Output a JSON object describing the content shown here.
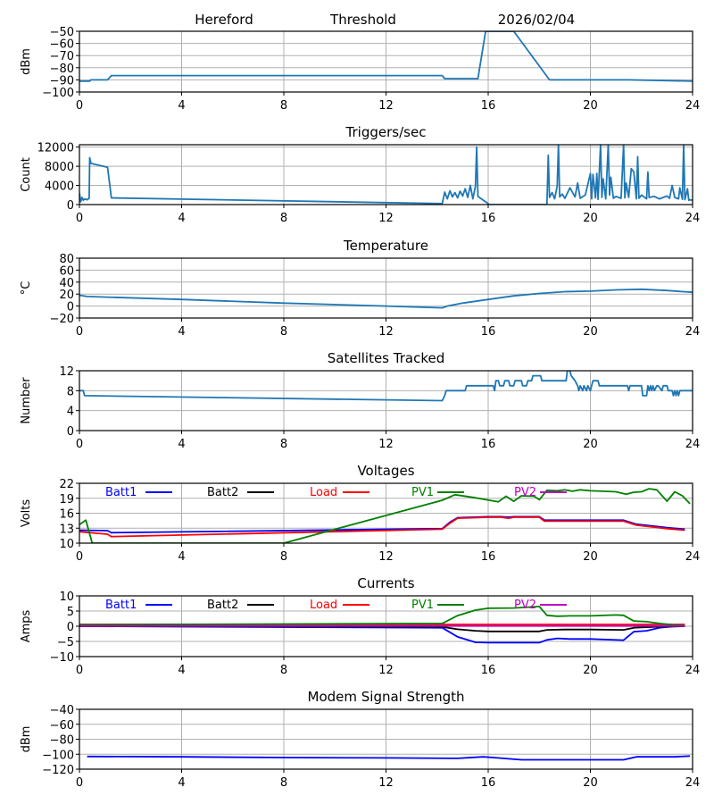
{
  "header": {
    "station": "Hereford",
    "mode": "Threshold",
    "date": "2026/02/04"
  },
  "chart_data": [
    {
      "id": "threshold",
      "type": "line",
      "title": "",
      "xlabel": "",
      "ylabel": "dBm",
      "xlim": [
        0,
        24
      ],
      "ylim": [
        -100,
        -50
      ],
      "xticks": [
        0,
        4,
        8,
        12,
        16,
        20,
        24
      ],
      "yticks": [
        -100,
        -90,
        -80,
        -70,
        -60,
        -50
      ],
      "ytick_labels": [
        "−100",
        "−90",
        "−80",
        "−70",
        "−60",
        "−50"
      ],
      "grid": true,
      "series": [
        {
          "name": "Threshold",
          "color": "#1f77b4",
          "x": [
            0,
            0.4,
            0.45,
            1.1,
            1.25,
            14.2,
            14.3,
            15.6,
            15.9,
            17.0,
            18.4,
            21.5,
            24
          ],
          "y": [
            -91,
            -91,
            -90,
            -90,
            -86.5,
            -86.5,
            -89,
            -89,
            -50,
            -50,
            -90,
            -90,
            -91
          ]
        }
      ]
    },
    {
      "id": "triggers",
      "type": "line",
      "title": "Triggers/sec",
      "xlabel": "",
      "ylabel": "Count",
      "xlim": [
        0,
        24
      ],
      "ylim": [
        0,
        12500
      ],
      "xticks": [
        0,
        4,
        8,
        12,
        16,
        20,
        24
      ],
      "yticks": [
        0,
        4000,
        8000,
        12000
      ],
      "ytick_labels": [
        "0",
        "4000",
        "8000",
        "12000"
      ],
      "grid": true,
      "series": [
        {
          "name": "Triggers",
          "color": "#1f77b4",
          "x": [
            0,
            0.05,
            0.1,
            0.15,
            0.2,
            0.3,
            0.38,
            0.4,
            0.45,
            1.1,
            1.25,
            14.2,
            14.3,
            14.4,
            14.5,
            14.6,
            14.7,
            14.8,
            14.9,
            15.0,
            15.1,
            15.2,
            15.3,
            15.4,
            15.5,
            15.55,
            15.6,
            16.05,
            18.3,
            18.35,
            18.4,
            18.5,
            18.6,
            18.7,
            18.75,
            18.8,
            18.9,
            19.0,
            19.2,
            19.4,
            19.5,
            19.6,
            19.8,
            20.0,
            20.05,
            20.1,
            20.2,
            20.25,
            20.3,
            20.4,
            20.45,
            20.5,
            20.6,
            20.7,
            20.75,
            20.8,
            20.9,
            21.0,
            21.2,
            21.3,
            21.35,
            21.4,
            21.5,
            21.6,
            21.7,
            21.8,
            21.85,
            21.9,
            22.0,
            22.2,
            22.25,
            22.3,
            22.5,
            22.7,
            23.0,
            23.1,
            23.2,
            23.3,
            23.45,
            23.5,
            23.6,
            23.65,
            23.7,
            23.8,
            23.85,
            23.9,
            24
          ],
          "y": [
            2400,
            600,
            1500,
            900,
            1200,
            1000,
            1300,
            9800,
            8600,
            7800,
            1400,
            200,
            2600,
            1200,
            2900,
            1600,
            2500,
            1400,
            2800,
            1800,
            3300,
            1500,
            4000,
            1200,
            3800,
            12000,
            1700,
            0,
            0,
            10300,
            1500,
            2500,
            1200,
            3800,
            12500,
            1600,
            2200,
            1300,
            3500,
            1600,
            4500,
            1300,
            2000,
            6500,
            1200,
            6300,
            1400,
            6500,
            1100,
            12500,
            1500,
            5400,
            1200,
            12500,
            2000,
            5700,
            1300,
            1700,
            1300,
            12500,
            1400,
            4500,
            1500,
            7500,
            6800,
            1200,
            10000,
            1300,
            2000,
            1200,
            6800,
            1500,
            1700,
            1200,
            1800,
            1300,
            4000,
            1500,
            1200,
            3500,
            1100,
            12500,
            1000,
            3300,
            900,
            1000,
            900
          ]
        }
      ]
    },
    {
      "id": "temperature",
      "type": "line",
      "title": "Temperature",
      "xlabel": "",
      "ylabel": "°C",
      "xlim": [
        0,
        24
      ],
      "ylim": [
        -20,
        80
      ],
      "xticks": [
        0,
        4,
        8,
        12,
        16,
        20,
        24
      ],
      "yticks": [
        -20,
        0,
        20,
        40,
        60,
        80
      ],
      "ytick_labels": [
        "−20",
        "0",
        "20",
        "40",
        "60",
        "80"
      ],
      "grid": true,
      "series": [
        {
          "name": "Temperature",
          "color": "#1f77b4",
          "x": [
            0,
            0.3,
            4,
            8,
            12,
            14.2,
            14.4,
            15,
            16,
            17,
            18,
            19,
            20,
            21,
            22,
            23,
            24
          ],
          "y": [
            18,
            16,
            11,
            5,
            0,
            -3,
            0,
            5,
            11,
            17,
            21,
            24,
            25,
            27,
            28,
            26,
            23
          ]
        }
      ]
    },
    {
      "id": "satellites",
      "type": "line",
      "title": "Satellites Tracked",
      "xlabel": "",
      "ylabel": "Number",
      "xlim": [
        0,
        24
      ],
      "ylim": [
        0,
        12
      ],
      "xticks": [
        0,
        4,
        8,
        12,
        16,
        20,
        24
      ],
      "yticks": [
        0,
        4,
        8,
        12
      ],
      "ytick_labels": [
        "0",
        "4",
        "8",
        "12"
      ],
      "grid": true,
      "series": [
        {
          "name": "Satellites",
          "color": "#1f77b4",
          "x": [
            0,
            0.15,
            0.2,
            14.2,
            14.3,
            14.35,
            15.1,
            15.15,
            16.2,
            16.25,
            16.3,
            16.4,
            16.45,
            16.6,
            16.65,
            16.8,
            16.85,
            17.0,
            17.05,
            17.3,
            17.35,
            17.5,
            17.55,
            17.7,
            17.75,
            18.05,
            18.1,
            19.05,
            19.1,
            19.2,
            19.25,
            19.4,
            19.5,
            19.55,
            19.6,
            19.7,
            19.75,
            19.85,
            19.9,
            20.0,
            20.05,
            20.1,
            20.15,
            20.3,
            20.35,
            20.5,
            20.55,
            20.9,
            21.45,
            21.5,
            21.55,
            22.0,
            22.05,
            22.2,
            22.25,
            22.3,
            22.35,
            22.4,
            22.45,
            22.5,
            22.6,
            22.65,
            22.8,
            22.85,
            23.0,
            23.05,
            23.2,
            23.25,
            23.3,
            23.35,
            23.4,
            23.45,
            23.5,
            24
          ],
          "y": [
            8,
            8,
            7,
            6,
            7,
            8,
            8,
            9,
            9,
            8,
            10,
            10,
            9,
            9,
            10,
            10,
            9,
            9,
            10,
            10,
            9,
            9,
            10,
            10,
            11,
            11,
            10,
            10,
            12,
            12,
            11,
            10,
            9,
            8,
            9,
            8,
            9,
            8,
            9,
            8,
            9,
            10,
            10,
            10,
            9,
            9,
            9,
            9,
            9,
            8,
            9,
            9,
            7,
            7,
            9,
            8,
            9,
            8,
            9,
            8,
            9,
            9,
            8,
            9,
            9,
            8,
            8,
            7,
            8,
            7,
            8,
            7,
            8,
            8
          ]
        }
      ]
    },
    {
      "id": "voltages",
      "type": "line",
      "title": "Voltages",
      "xlabel": "",
      "ylabel": "Volts",
      "xlim": [
        0,
        24
      ],
      "ylim": [
        10,
        22
      ],
      "xticks": [
        0,
        4,
        8,
        12,
        16,
        20,
        24
      ],
      "yticks": [
        10,
        13,
        16,
        19,
        22
      ],
      "ytick_labels": [
        "10",
        "13",
        "16",
        "19",
        "22"
      ],
      "grid": true,
      "legend": "top",
      "series": [
        {
          "name": "Batt1",
          "color": "#0000ff",
          "x": [
            0,
            1.1,
            1.25,
            14.2,
            14.5,
            14.8,
            16,
            16.5,
            16.8,
            17,
            18,
            18.2,
            21.3,
            21.8,
            22.5,
            23,
            23.7
          ],
          "y": [
            12.6,
            12.5,
            12.1,
            12.9,
            14.2,
            15.1,
            15.3,
            15.3,
            15.2,
            15.3,
            15.3,
            14.6,
            14.6,
            13.8,
            13.4,
            13.1,
            12.8
          ]
        },
        {
          "name": "Batt2",
          "color": "#000000",
          "x": [],
          "y": []
        },
        {
          "name": "Load",
          "color": "#ff0000",
          "x": [
            0,
            1.1,
            1.25,
            14.2,
            14.5,
            14.8,
            16,
            16.5,
            16.8,
            17,
            18,
            18.2,
            21.3,
            21.8,
            22.5,
            23,
            23.7
          ],
          "y": [
            12.3,
            11.8,
            11.3,
            12.8,
            14.0,
            15.0,
            15.2,
            15.2,
            15.0,
            15.2,
            15.2,
            14.4,
            14.4,
            13.6,
            13.2,
            12.9,
            12.6
          ]
        },
        {
          "name": "PV1",
          "color": "#008000",
          "x": [
            0,
            0.25,
            0.5,
            8,
            14.2,
            14.7,
            15.5,
            16.4,
            16.7,
            17.0,
            17.3,
            17.8,
            18.0,
            18.3,
            18.7,
            19.0,
            19.3,
            19.6,
            20.0,
            20.5,
            21.0,
            21.4,
            21.7,
            22.0,
            22.3,
            22.6,
            23.0,
            23.3,
            23.6,
            23.9
          ],
          "y": [
            13.7,
            14.6,
            10,
            10,
            18.6,
            19.7,
            19.1,
            18.3,
            19.4,
            18.4,
            19.5,
            19.4,
            18.7,
            20.6,
            20.5,
            20.7,
            20.4,
            20.7,
            20.5,
            20.4,
            20.3,
            19.8,
            20.2,
            20.3,
            20.9,
            20.7,
            18.4,
            20.3,
            19.5,
            17.9
          ]
        },
        {
          "name": "PV2",
          "color": "#bf00bf",
          "x": [],
          "y": []
        }
      ]
    },
    {
      "id": "currents",
      "type": "line",
      "title": "Currents",
      "xlabel": "",
      "ylabel": "Amps",
      "xlim": [
        0,
        24
      ],
      "ylim": [
        -10,
        10
      ],
      "xticks": [
        0,
        4,
        8,
        12,
        16,
        20,
        24
      ],
      "yticks": [
        -10,
        -5,
        0,
        5,
        10
      ],
      "ytick_labels": [
        "−10",
        "−5",
        "0",
        "5",
        "10"
      ],
      "grid": true,
      "legend": "top",
      "series": [
        {
          "name": "Batt1",
          "color": "#0000ff",
          "x": [
            0,
            14.2,
            14.8,
            15.5,
            16,
            18,
            18.3,
            18.7,
            19.2,
            20,
            21.3,
            21.7,
            22.2,
            22.7,
            23.2,
            23.7
          ],
          "y": [
            0,
            -0.5,
            -3.5,
            -5.3,
            -5.4,
            -5.4,
            -4.5,
            -4.0,
            -4.2,
            -4.2,
            -4.6,
            -1.8,
            -1.5,
            -0.5,
            -0.1,
            0
          ]
        },
        {
          "name": "Batt2",
          "color": "#000000",
          "x": [
            0,
            14.2,
            14.8,
            15.5,
            16,
            18,
            18.3,
            19,
            20,
            21.3,
            21.7,
            22.5,
            23.7
          ],
          "y": [
            0,
            -0.2,
            -1.0,
            -1.5,
            -1.7,
            -1.7,
            -1.2,
            -1.1,
            -1.1,
            -1.2,
            -0.5,
            -0.2,
            0
          ]
        },
        {
          "name": "Load",
          "color": "#ff0000",
          "x": [
            0,
            23.7
          ],
          "y": [
            0.6,
            0.6
          ]
        },
        {
          "name": "PV1",
          "color": "#008000",
          "x": [
            0,
            14.2,
            14.8,
            15.5,
            16,
            17,
            18,
            18.3,
            18.7,
            19.2,
            20,
            21,
            21.3,
            21.7,
            22.2,
            22.7,
            23.2,
            23.7
          ],
          "y": [
            0.5,
            0.9,
            3.5,
            5.3,
            5.9,
            6.0,
            6.5,
            3.6,
            3.3,
            3.4,
            3.4,
            3.7,
            3.6,
            1.7,
            1.5,
            0.9,
            0.5,
            0.3
          ]
        },
        {
          "name": "PV2",
          "color": "#bf00bf",
          "x": [
            0,
            23.7
          ],
          "y": [
            0.1,
            0.1
          ]
        }
      ]
    },
    {
      "id": "modem",
      "type": "line",
      "title": "Modem Signal Strength",
      "xlabel": "",
      "ylabel": "dBm",
      "xlim": [
        0,
        24
      ],
      "ylim": [
        -120,
        -40
      ],
      "xticks": [
        0,
        4,
        8,
        12,
        16,
        20,
        24
      ],
      "yticks": [
        -120,
        -100,
        -80,
        -60,
        -40
      ],
      "ytick_labels": [
        "−120",
        "−100",
        "−80",
        "−60",
        "−40"
      ],
      "grid": true,
      "series": [
        {
          "name": "Modem",
          "color": "#0000ff",
          "x": [
            0.3,
            4,
            8,
            12,
            14.8,
            15.8,
            16.2,
            17.3,
            20,
            21.3,
            21.8,
            23.3,
            23.9
          ],
          "y": [
            -103,
            -103.5,
            -104.5,
            -105,
            -105.5,
            -103.5,
            -104.5,
            -107.5,
            -107.5,
            -107.5,
            -103.5,
            -103.5,
            -102.5
          ]
        }
      ]
    }
  ]
}
